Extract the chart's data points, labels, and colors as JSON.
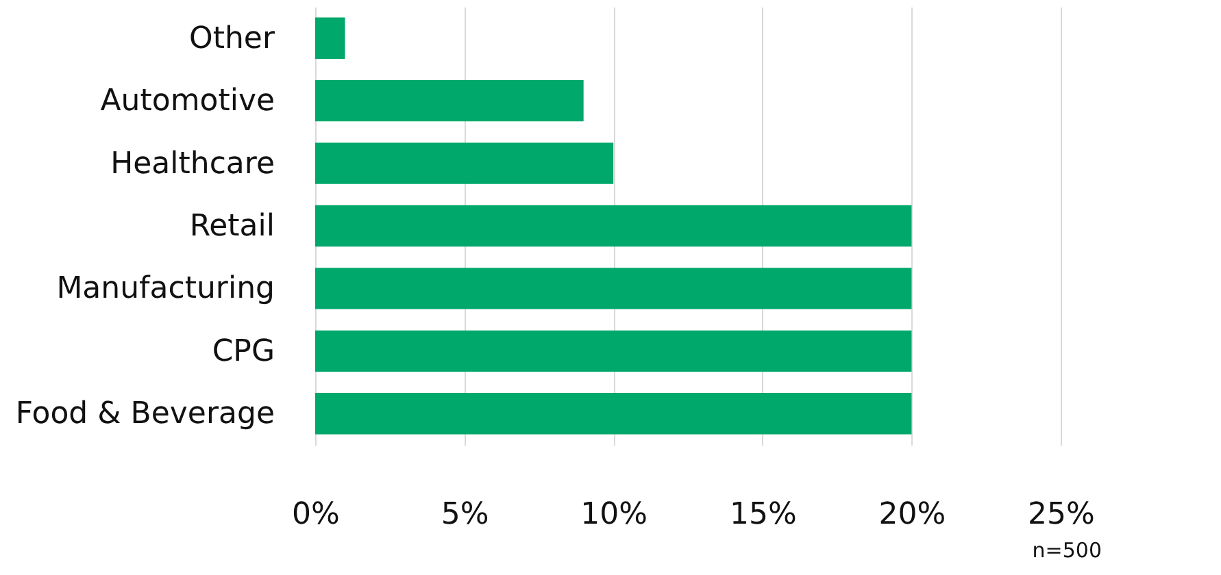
{
  "chart_data": {
    "type": "bar",
    "orientation": "horizontal",
    "categories": [
      "Other",
      "Automotive",
      "Healthcare",
      "Retail",
      "Manufacturing",
      "CPG",
      "Food & Beverage"
    ],
    "values": [
      1,
      9,
      10,
      20,
      20,
      20,
      20
    ],
    "color": "#00a86b",
    "xlim": [
      0,
      25
    ],
    "xticks": [
      {
        "value": 0,
        "label": "0%"
      },
      {
        "value": 5,
        "label": "5%"
      },
      {
        "value": 10,
        "label": "10%"
      },
      {
        "value": 15,
        "label": "15%"
      },
      {
        "value": 20,
        "label": "20%"
      },
      {
        "value": 25,
        "label": "25%"
      }
    ],
    "grid": "x",
    "annotations": [
      "n=500"
    ]
  }
}
